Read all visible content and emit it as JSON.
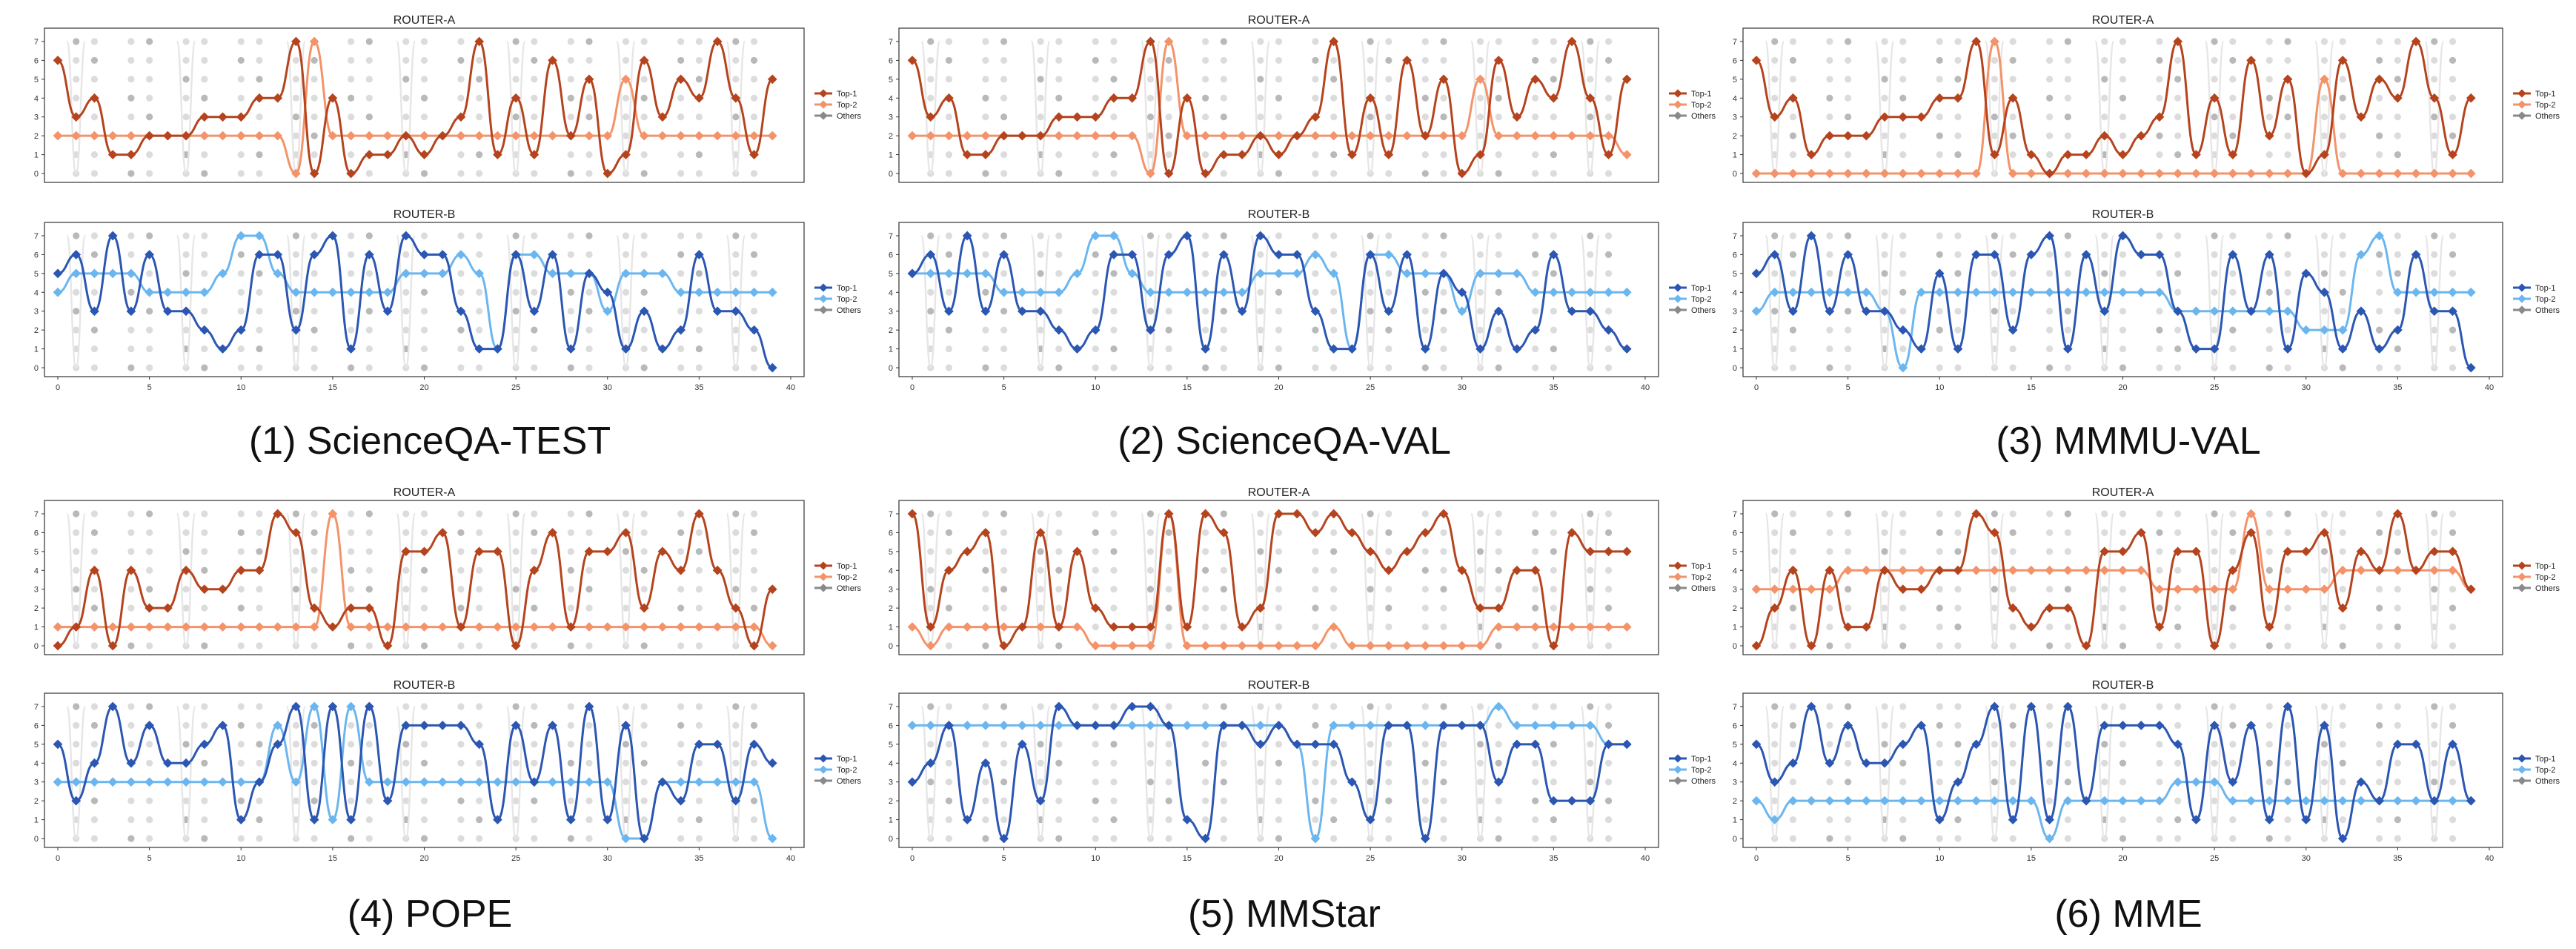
{
  "colors": {
    "top1_a": "#b5441e",
    "top2_a": "#f4936a",
    "top1_b": "#2b56b2",
    "top2_b": "#6bb6ef",
    "others": "#8a8a8a"
  },
  "chart_data": [
    {
      "id": "p1",
      "caption": "(1) ScienceQA-TEST",
      "type": "line",
      "xlim": [
        0,
        40
      ],
      "xticks": [
        "0",
        "5",
        "10",
        "15",
        "20",
        "25",
        "30",
        "35",
        "40"
      ],
      "router_a": {
        "title": "ROUTER-A",
        "yticks": [
          "0",
          "1",
          "2",
          "3",
          "4",
          "5",
          "6",
          "7"
        ],
        "legend": [
          "Top-1",
          "Top-2",
          "Others"
        ],
        "top1": [
          6,
          3,
          4,
          1,
          1,
          2,
          2,
          2,
          3,
          3,
          3,
          4,
          4,
          7,
          0,
          4,
          0,
          1,
          1,
          2,
          1,
          2,
          3,
          7,
          1,
          4,
          1,
          6,
          2,
          5,
          0,
          1,
          6,
          3,
          5,
          4,
          7,
          4,
          1,
          5
        ],
        "top2": [
          2,
          2,
          2,
          2,
          2,
          2,
          2,
          2,
          2,
          2,
          2,
          2,
          2,
          0,
          7,
          2,
          2,
          2,
          2,
          2,
          2,
          2,
          2,
          2,
          2,
          2,
          2,
          2,
          2,
          2,
          2,
          5,
          2,
          2,
          2,
          2,
          2,
          2,
          2,
          2
        ]
      },
      "router_b": {
        "title": "ROUTER-B",
        "yticks": [
          "0",
          "1",
          "2",
          "3",
          "4",
          "5",
          "6",
          "7"
        ],
        "legend": [
          "Top-1",
          "Top-2",
          "Others"
        ],
        "top1": [
          5,
          6,
          3,
          7,
          3,
          6,
          3,
          3,
          2,
          1,
          2,
          6,
          6,
          2,
          6,
          7,
          1,
          6,
          3,
          7,
          6,
          6,
          3,
          1,
          1,
          6,
          3,
          6,
          1,
          5,
          4,
          1,
          3,
          1,
          2,
          6,
          3,
          3,
          2,
          0
        ],
        "top2": [
          4,
          5,
          5,
          5,
          5,
          4,
          4,
          4,
          4,
          5,
          7,
          7,
          5,
          4,
          4,
          4,
          4,
          4,
          4,
          5,
          5,
          5,
          6,
          5,
          1,
          6,
          6,
          5,
          5,
          5,
          3,
          5,
          5,
          5,
          4,
          4,
          4,
          4,
          4,
          4
        ]
      }
    },
    {
      "id": "p2",
      "caption": "(2) ScienceQA-VAL",
      "type": "line",
      "xlim": [
        0,
        40
      ],
      "xticks": [
        "0",
        "5",
        "10",
        "15",
        "20",
        "25",
        "30",
        "35",
        "40"
      ],
      "router_a": {
        "title": "ROUTER-A",
        "yticks": [
          "0",
          "1",
          "2",
          "3",
          "4",
          "5",
          "6",
          "7"
        ],
        "legend": [
          "Top-1",
          "Top-2",
          "Others"
        ],
        "top1": [
          6,
          3,
          4,
          1,
          1,
          2,
          2,
          2,
          3,
          3,
          3,
          4,
          4,
          7,
          0,
          4,
          0,
          1,
          1,
          2,
          1,
          2,
          3,
          7,
          1,
          4,
          1,
          6,
          2,
          5,
          0,
          1,
          6,
          3,
          5,
          4,
          7,
          4,
          1,
          5
        ],
        "top2": [
          2,
          2,
          2,
          2,
          2,
          2,
          2,
          2,
          2,
          2,
          2,
          2,
          2,
          0,
          7,
          2,
          2,
          2,
          2,
          2,
          2,
          2,
          2,
          2,
          2,
          2,
          2,
          2,
          2,
          2,
          2,
          5,
          2,
          2,
          2,
          2,
          2,
          2,
          2,
          1
        ]
      },
      "router_b": {
        "title": "ROUTER-B",
        "yticks": [
          "0",
          "1",
          "2",
          "3",
          "4",
          "5",
          "6",
          "7"
        ],
        "legend": [
          "Top-1",
          "Top-2",
          "Others"
        ],
        "top1": [
          5,
          6,
          3,
          7,
          3,
          6,
          3,
          3,
          2,
          1,
          2,
          6,
          6,
          2,
          6,
          7,
          1,
          6,
          3,
          7,
          6,
          6,
          3,
          1,
          1,
          6,
          3,
          6,
          1,
          5,
          4,
          1,
          3,
          1,
          2,
          6,
          3,
          3,
          2,
          1
        ],
        "top2": [
          5,
          5,
          5,
          5,
          5,
          4,
          4,
          4,
          4,
          5,
          7,
          7,
          5,
          4,
          4,
          4,
          4,
          4,
          4,
          5,
          5,
          5,
          6,
          5,
          1,
          6,
          6,
          5,
          5,
          5,
          3,
          5,
          5,
          5,
          4,
          4,
          4,
          4,
          4,
          4
        ]
      }
    },
    {
      "id": "p3",
      "caption": "(3) MMMU-VAL",
      "type": "line",
      "xlim": [
        0,
        40
      ],
      "xticks": [
        "0",
        "5",
        "10",
        "15",
        "20",
        "25",
        "30",
        "35",
        "40"
      ],
      "router_a": {
        "title": "ROUTER-A",
        "yticks": [
          "0",
          "1",
          "2",
          "3",
          "4",
          "5",
          "6",
          "7"
        ],
        "legend": [
          "Top-1",
          "Top-2",
          "Others"
        ],
        "top1": [
          6,
          3,
          4,
          1,
          2,
          2,
          2,
          3,
          3,
          3,
          4,
          4,
          7,
          1,
          4,
          1,
          0,
          1,
          1,
          2,
          1,
          2,
          3,
          7,
          1,
          4,
          1,
          6,
          2,
          5,
          0,
          1,
          6,
          3,
          5,
          4,
          7,
          4,
          1,
          4
        ],
        "top2": [
          0,
          0,
          0,
          0,
          0,
          0,
          0,
          0,
          0,
          0,
          0,
          0,
          0,
          7,
          0,
          0,
          0,
          0,
          0,
          0,
          0,
          0,
          0,
          0,
          0,
          0,
          0,
          0,
          0,
          0,
          0,
          5,
          0,
          0,
          0,
          0,
          0,
          0,
          0,
          0
        ]
      },
      "router_b": {
        "title": "ROUTER-B",
        "yticks": [
          "0",
          "1",
          "2",
          "3",
          "4",
          "5",
          "6",
          "7"
        ],
        "legend": [
          "Top-1",
          "Top-2",
          "Others"
        ],
        "top1": [
          5,
          6,
          3,
          7,
          3,
          6,
          3,
          3,
          2,
          1,
          5,
          1,
          6,
          6,
          2,
          6,
          7,
          1,
          6,
          3,
          7,
          6,
          6,
          3,
          1,
          1,
          6,
          3,
          6,
          1,
          5,
          4,
          1,
          3,
          1,
          2,
          6,
          3,
          3,
          0
        ],
        "top2": [
          3,
          4,
          4,
          4,
          4,
          4,
          4,
          3,
          0,
          4,
          4,
          4,
          4,
          4,
          4,
          4,
          4,
          4,
          4,
          4,
          4,
          4,
          4,
          3,
          3,
          3,
          3,
          3,
          3,
          3,
          2,
          2,
          2,
          6,
          7,
          4,
          4,
          4,
          4,
          4
        ]
      }
    },
    {
      "id": "p4",
      "caption": "(4) POPE",
      "type": "line",
      "xlim": [
        0,
        40
      ],
      "xticks": [
        "0",
        "5",
        "10",
        "15",
        "20",
        "25",
        "30",
        "35",
        "40"
      ],
      "router_a": {
        "title": "ROUTER-A",
        "yticks": [
          "0",
          "1",
          "2",
          "3",
          "4",
          "5",
          "6",
          "7"
        ],
        "legend": [
          "Top-1",
          "Top-2",
          "Others"
        ],
        "top1": [
          0,
          1,
          4,
          0,
          4,
          2,
          2,
          4,
          3,
          3,
          4,
          4,
          7,
          6,
          2,
          1,
          2,
          2,
          0,
          5,
          5,
          6,
          1,
          5,
          5,
          0,
          4,
          6,
          1,
          5,
          5,
          6,
          2,
          5,
          4,
          7,
          4,
          2,
          0,
          3
        ],
        "top2": [
          1,
          1,
          1,
          1,
          1,
          1,
          1,
          1,
          1,
          1,
          1,
          1,
          1,
          1,
          1,
          7,
          1,
          1,
          1,
          1,
          1,
          1,
          1,
          1,
          1,
          1,
          1,
          1,
          1,
          1,
          1,
          1,
          1,
          1,
          1,
          1,
          1,
          1,
          1,
          0
        ]
      },
      "router_b": {
        "title": "ROUTER-B",
        "yticks": [
          "0",
          "1",
          "2",
          "3",
          "4",
          "5",
          "6",
          "7"
        ],
        "legend": [
          "Top-1",
          "Top-2",
          "Others"
        ],
        "top1": [
          5,
          2,
          4,
          7,
          4,
          6,
          4,
          4,
          5,
          6,
          1,
          3,
          5,
          7,
          1,
          7,
          1,
          7,
          2,
          6,
          6,
          6,
          6,
          5,
          1,
          6,
          3,
          6,
          1,
          7,
          1,
          6,
          0,
          3,
          2,
          5,
          5,
          2,
          5,
          4
        ],
        "top2": [
          3,
          3,
          3,
          3,
          3,
          3,
          3,
          3,
          3,
          3,
          3,
          3,
          6,
          3,
          7,
          1,
          7,
          3,
          3,
          3,
          3,
          3,
          3,
          3,
          3,
          3,
          3,
          3,
          3,
          3,
          3,
          0,
          0,
          3,
          3,
          3,
          3,
          3,
          3,
          0
        ]
      }
    },
    {
      "id": "p5",
      "caption": "(5) MMStar",
      "type": "line",
      "xlim": [
        0,
        40
      ],
      "xticks": [
        "0",
        "5",
        "10",
        "15",
        "20",
        "25",
        "30",
        "35",
        "40"
      ],
      "router_a": {
        "title": "ROUTER-A",
        "yticks": [
          "0",
          "1",
          "2",
          "3",
          "4",
          "5",
          "6",
          "7"
        ],
        "legend": [
          "Top-1",
          "Top-2",
          "Others"
        ],
        "top1": [
          7,
          1,
          4,
          5,
          6,
          0,
          1,
          6,
          1,
          5,
          2,
          1,
          1,
          1,
          7,
          1,
          7,
          6,
          1,
          2,
          7,
          7,
          6,
          7,
          6,
          5,
          4,
          5,
          6,
          7,
          4,
          2,
          2,
          4,
          4,
          0,
          6,
          5,
          5,
          5
        ],
        "top2": [
          1,
          0,
          1,
          1,
          1,
          1,
          1,
          1,
          1,
          1,
          0,
          0,
          0,
          0,
          7,
          0,
          0,
          0,
          0,
          0,
          0,
          0,
          0,
          1,
          0,
          0,
          0,
          0,
          0,
          0,
          0,
          0,
          1,
          1,
          1,
          1,
          1,
          1,
          1,
          1
        ]
      },
      "router_b": {
        "title": "ROUTER-B",
        "yticks": [
          "0",
          "1",
          "2",
          "3",
          "4",
          "5",
          "6",
          "7"
        ],
        "legend": [
          "Top-1",
          "Top-2",
          "Others"
        ],
        "top1": [
          3,
          4,
          6,
          1,
          4,
          0,
          5,
          2,
          7,
          6,
          6,
          6,
          7,
          7,
          6,
          1,
          0,
          6,
          6,
          5,
          6,
          5,
          5,
          5,
          3,
          1,
          6,
          6,
          0,
          6,
          6,
          6,
          3,
          5,
          5,
          2,
          2,
          2,
          5,
          5
        ],
        "top2": [
          6,
          6,
          6,
          6,
          6,
          6,
          6,
          6,
          6,
          6,
          6,
          6,
          6,
          6,
          6,
          6,
          6,
          6,
          6,
          6,
          6,
          5,
          0,
          6,
          6,
          6,
          6,
          6,
          6,
          6,
          6,
          6,
          7,
          6,
          6,
          6,
          6,
          6,
          5,
          5
        ]
      }
    },
    {
      "id": "p6",
      "caption": "(6) MME",
      "type": "line",
      "xlim": [
        0,
        40
      ],
      "xticks": [
        "0",
        "5",
        "10",
        "15",
        "20",
        "25",
        "30",
        "35",
        "40"
      ],
      "router_a": {
        "title": "ROUTER-A",
        "yticks": [
          "0",
          "1",
          "2",
          "3",
          "4",
          "5",
          "6",
          "7"
        ],
        "legend": [
          "Top-1",
          "Top-2",
          "Others"
        ],
        "top1": [
          0,
          2,
          4,
          0,
          4,
          1,
          1,
          4,
          3,
          3,
          4,
          4,
          7,
          6,
          2,
          1,
          2,
          2,
          0,
          5,
          5,
          6,
          1,
          5,
          5,
          0,
          4,
          6,
          1,
          5,
          5,
          6,
          2,
          5,
          4,
          7,
          4,
          5,
          5,
          3
        ],
        "top2": [
          3,
          3,
          3,
          3,
          3,
          4,
          4,
          4,
          4,
          4,
          4,
          4,
          4,
          4,
          4,
          4,
          4,
          4,
          4,
          4,
          4,
          4,
          3,
          3,
          3,
          3,
          3,
          7,
          3,
          3,
          3,
          3,
          4,
          4,
          4,
          4,
          4,
          4,
          4,
          3
        ]
      },
      "router_b": {
        "title": "ROUTER-B",
        "yticks": [
          "0",
          "1",
          "2",
          "3",
          "4",
          "5",
          "6",
          "7"
        ],
        "legend": [
          "Top-1",
          "Top-2",
          "Others"
        ],
        "top1": [
          5,
          3,
          4,
          7,
          4,
          6,
          4,
          4,
          5,
          6,
          1,
          3,
          5,
          7,
          1,
          7,
          1,
          7,
          2,
          6,
          6,
          6,
          6,
          5,
          1,
          6,
          3,
          6,
          1,
          7,
          1,
          6,
          0,
          3,
          2,
          5,
          5,
          2,
          5,
          2
        ],
        "top2": [
          2,
          1,
          2,
          2,
          2,
          2,
          2,
          2,
          2,
          2,
          2,
          2,
          2,
          2,
          2,
          2,
          0,
          2,
          2,
          2,
          2,
          2,
          2,
          3,
          3,
          3,
          2,
          2,
          2,
          2,
          2,
          2,
          2,
          2,
          2,
          2,
          2,
          2,
          2,
          2
        ]
      }
    }
  ]
}
